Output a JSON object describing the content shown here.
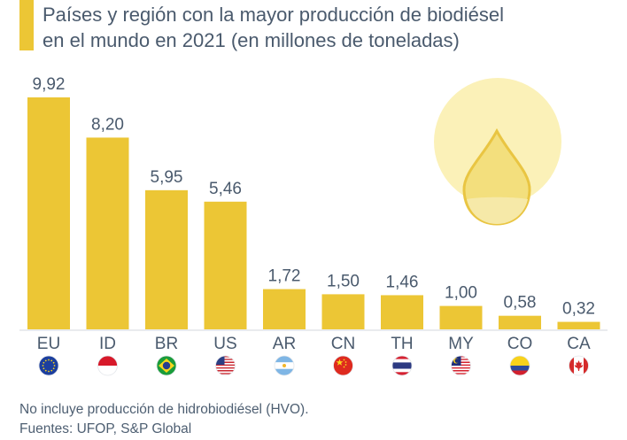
{
  "header": {
    "title_line1": "Países y región con la mayor producción de biodiésel",
    "title_line2": "en el mundo en 2021 (en millones de toneladas)"
  },
  "footer": {
    "note": "No incluye producción de hidrobiodiésel (HVO).",
    "source": "Fuentes: UFOP, S&P Global"
  },
  "colors": {
    "bar": "#ecc635",
    "text": "#4a5a6d",
    "axis": "#d3d7dc",
    "drop_circle": "#fbf1b8"
  },
  "icons": [
    "oil-drop-icon"
  ],
  "chart_data": {
    "type": "bar",
    "title": "Países y región con la mayor producción de biodiésel en el mundo en 2021 (en millones de toneladas)",
    "xlabel": "",
    "ylabel": "",
    "ylim": [
      0,
      10
    ],
    "grid": false,
    "categories": [
      "EU",
      "ID",
      "BR",
      "US",
      "AR",
      "CN",
      "TH",
      "MY",
      "CO",
      "CA"
    ],
    "values": [
      9.92,
      8.2,
      5.95,
      5.46,
      1.72,
      1.5,
      1.46,
      1.0,
      0.58,
      0.32
    ],
    "value_labels": [
      "9,92",
      "8,20",
      "5,95",
      "5,46",
      "1,72",
      "1,50",
      "1,46",
      "1,00",
      "0,58",
      "0,32"
    ],
    "flags": [
      "eu-flag-icon",
      "id-flag-icon",
      "br-flag-icon",
      "us-flag-icon",
      "ar-flag-icon",
      "cn-flag-icon",
      "th-flag-icon",
      "my-flag-icon",
      "co-flag-icon",
      "ca-flag-icon"
    ]
  }
}
